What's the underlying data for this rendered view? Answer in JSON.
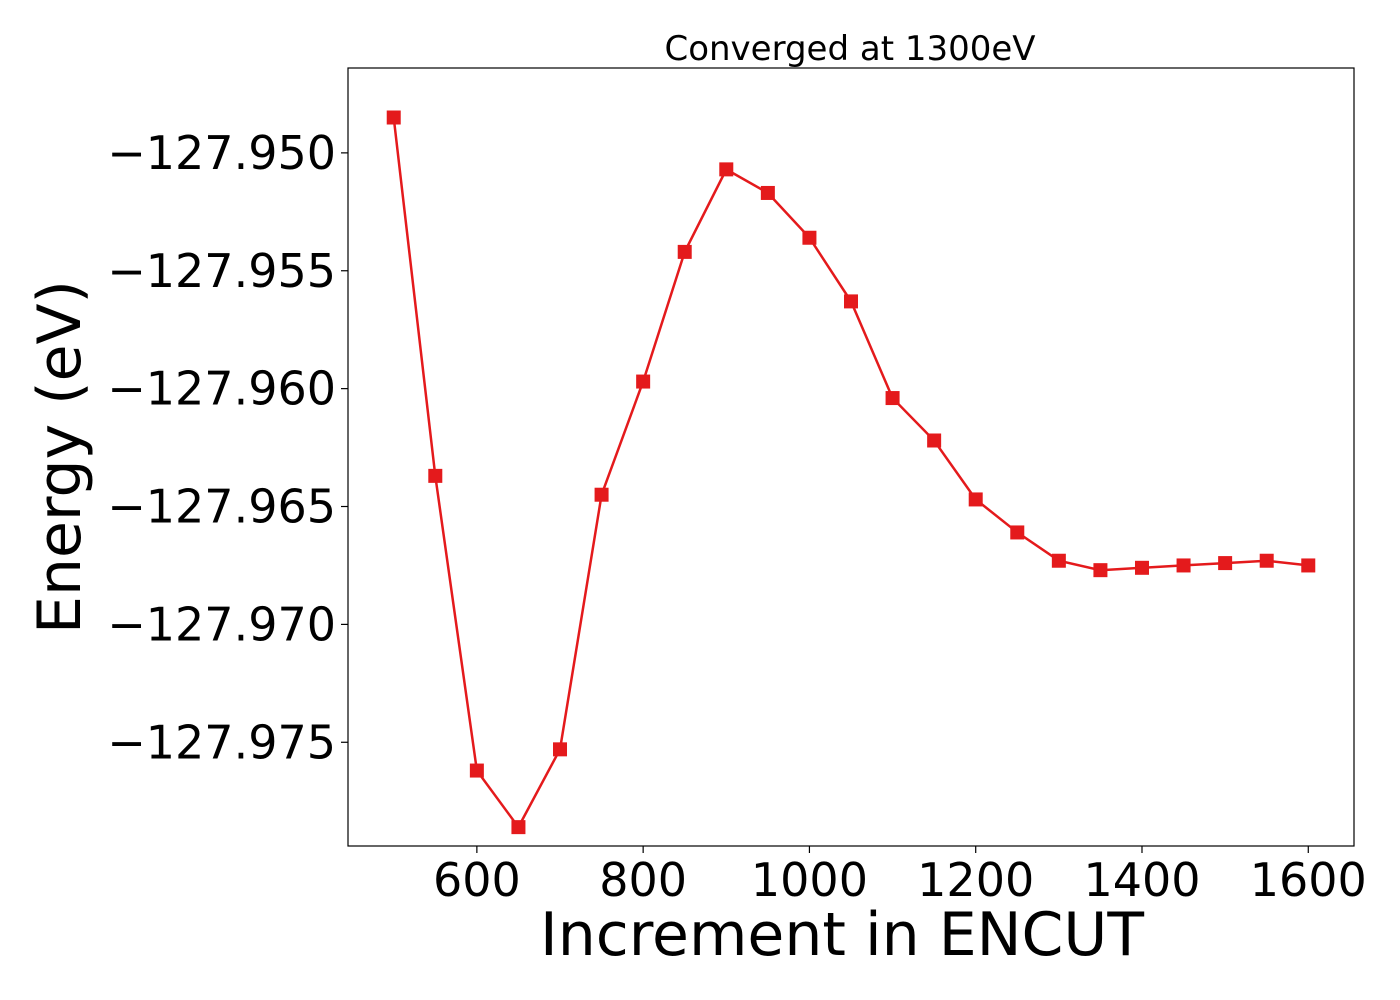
{
  "chart_data": {
    "type": "line",
    "title": "Converged at 1300eV",
    "xlabel": "Increment in ENCUT",
    "ylabel": "Energy (eV)",
    "xlim": [
      445,
      1655
    ],
    "ylim": [
      -127.9794,
      -127.9464
    ],
    "x_ticks": [
      600,
      800,
      1000,
      1200,
      1400,
      1600
    ],
    "x_tick_labels": [
      "600",
      "800",
      "1000",
      "1200",
      "1400",
      "1600"
    ],
    "y_ticks": [
      -127.95,
      -127.955,
      -127.96,
      -127.965,
      -127.97,
      -127.975
    ],
    "y_tick_labels": [
      "−127.950",
      "−127.955",
      "−127.960",
      "−127.965",
      "−127.970",
      "−127.975"
    ],
    "grid": false,
    "color": "#e41a1c",
    "marker": "square",
    "series": [
      {
        "x": [
          500,
          550,
          600,
          650,
          700,
          750,
          800,
          850,
          900,
          950,
          1000,
          1050,
          1100,
          1150,
          1200,
          1250,
          1300,
          1350,
          1400,
          1450,
          1500,
          1550,
          1600
        ],
        "values": [
          -127.9485,
          -127.9637,
          -127.9762,
          -127.9786,
          -127.9753,
          -127.9645,
          -127.9597,
          -127.9542,
          -127.9507,
          -127.9517,
          -127.9536,
          -127.9563,
          -127.9604,
          -127.9622,
          -127.9647,
          -127.9661,
          -127.9673,
          -127.9677,
          -127.9676,
          -127.9675,
          -127.9674,
          -127.9673,
          -127.9675
        ]
      }
    ]
  }
}
